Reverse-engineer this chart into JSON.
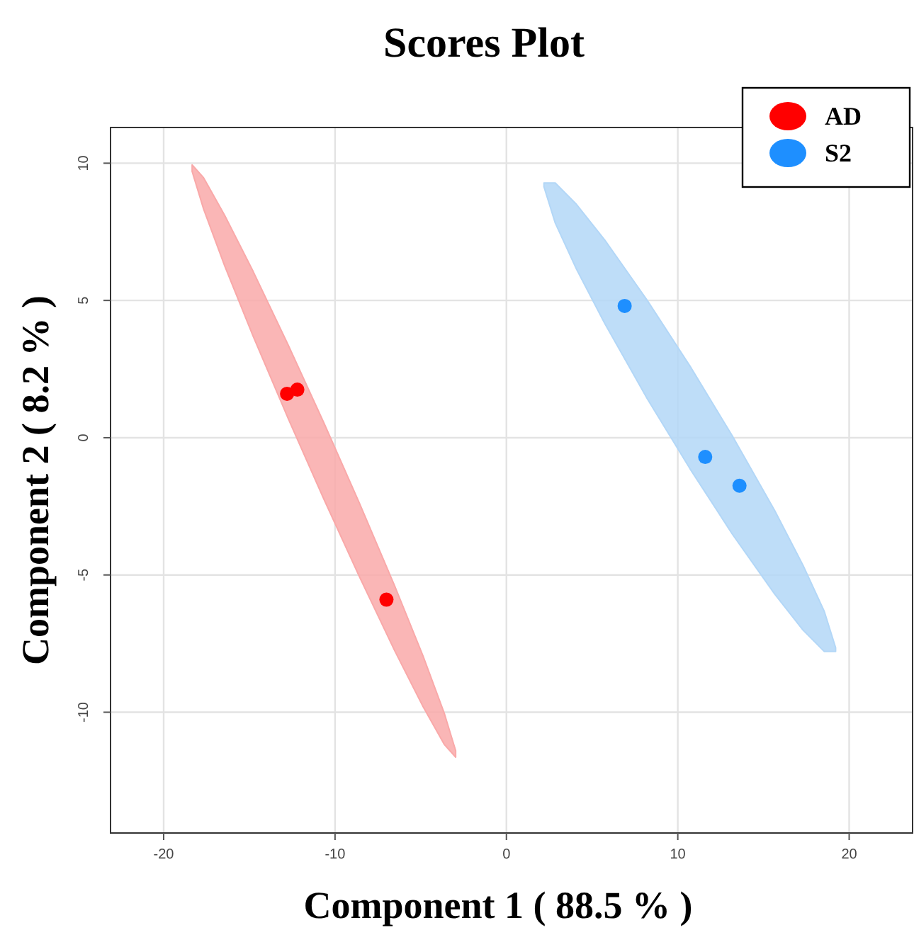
{
  "chart_data": {
    "type": "scatter",
    "title": "Scores Plot",
    "xlabel": "Component 1 ( 88.5 % )",
    "ylabel": "Component 2 ( 8.2 % )",
    "xlim": [
      -23.1,
      23.7
    ],
    "ylim": [
      -14.4,
      11.3
    ],
    "xticks": [
      -20,
      -10,
      0,
      10,
      20
    ],
    "yticks": [
      -10,
      -5,
      0,
      5,
      10
    ],
    "grid": true,
    "legend": "top right",
    "marker": "circle",
    "series": [
      {
        "type": "area",
        "marker": "none",
        "color": "#f9a9a9",
        "x": [
          -18.34,
          -17.67,
          -16.44,
          -14.78,
          -12.72,
          -10.65,
          -8.58,
          -6.52,
          -4.86,
          -3.63,
          -2.96,
          -2.96,
          -3.63,
          -4.86,
          -6.52,
          -8.58,
          -10.65,
          -12.72,
          -14.78,
          -16.44,
          -17.67,
          -18.34
        ],
        "values": [
          9.94,
          9.47,
          8.1,
          6.06,
          3.36,
          0.54,
          -2.38,
          -5.4,
          -7.96,
          -10.03,
          -11.4,
          -11.64,
          -11.17,
          -9.8,
          -7.76,
          -5.06,
          -2.24,
          0.68,
          3.7,
          6.26,
          8.33,
          9.7
        ]
      },
      {
        "type": "area",
        "marker": "none",
        "color": "#b3d7f7",
        "x": [
          2.19,
          2.85,
          4.09,
          5.74,
          8.22,
          10.7,
          13.18,
          15.66,
          17.31,
          18.55,
          19.21,
          19.21,
          18.55,
          17.31,
          15.66,
          13.18,
          10.7,
          8.22,
          5.74,
          4.09,
          2.85,
          2.19
        ],
        "values": [
          9.28,
          9.28,
          8.5,
          7.2,
          5.0,
          2.62,
          0.07,
          -2.66,
          -4.65,
          -6.33,
          -7.65,
          -7.79,
          -7.79,
          -7.01,
          -5.7,
          -3.51,
          -1.12,
          1.42,
          4.16,
          6.14,
          7.82,
          9.14
        ]
      },
      {
        "name": "AD",
        "color": "#ff0000",
        "x": [
          -12.8,
          -12.2,
          -7.0
        ],
        "values": [
          1.6,
          1.75,
          -5.9
        ]
      },
      {
        "name": "S2",
        "color": "#1e8fff",
        "x": [
          6.9,
          11.6,
          13.6
        ],
        "values": [
          4.8,
          -0.7,
          -1.75
        ]
      }
    ]
  }
}
